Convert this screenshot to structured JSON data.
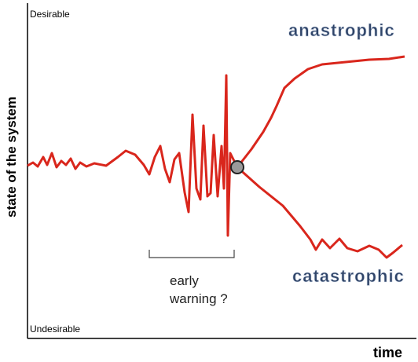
{
  "axes": {
    "y_label": "state of the system",
    "y_top": "Desirable",
    "y_bottom": "Undesirable",
    "x_label": "time"
  },
  "branches": {
    "upper": "anastrophic",
    "lower": "catastrophic"
  },
  "annotation": {
    "line1": "early",
    "line2": "warning ?"
  }
}
